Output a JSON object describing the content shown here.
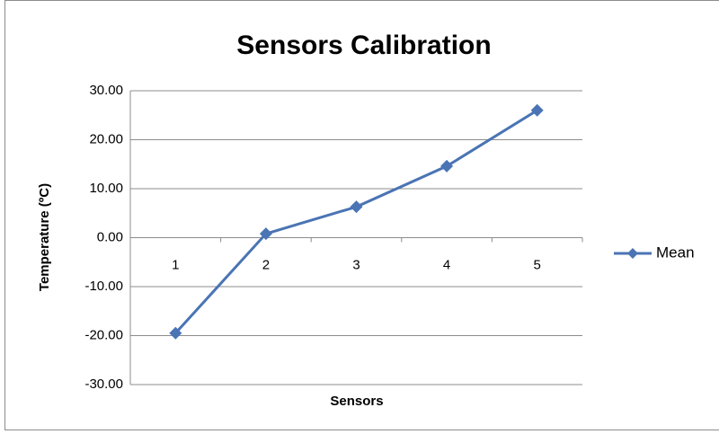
{
  "chart_data": {
    "type": "line",
    "title": "Sensors Calibration",
    "x_label": "Sensors",
    "y_label": "Temperature (ºC)",
    "categories": [
      "1",
      "2",
      "3",
      "4",
      "5"
    ],
    "series": [
      {
        "name": "Mean",
        "color": "#4a74b4",
        "values": [
          -19.5,
          0.8,
          6.3,
          14.6,
          26.0
        ]
      }
    ],
    "ylim": [
      -30,
      30
    ],
    "yticks": [
      {
        "value": -30,
        "label": "-30.00"
      },
      {
        "value": -20,
        "label": "-20.00"
      },
      {
        "value": -10,
        "label": "-10.00"
      },
      {
        "value": 0,
        "label": "0.00"
      },
      {
        "value": 10,
        "label": "10.00"
      },
      {
        "value": 20,
        "label": "20.00"
      },
      {
        "value": 30,
        "label": "30.00"
      }
    ],
    "grid": true,
    "legend": "right"
  }
}
